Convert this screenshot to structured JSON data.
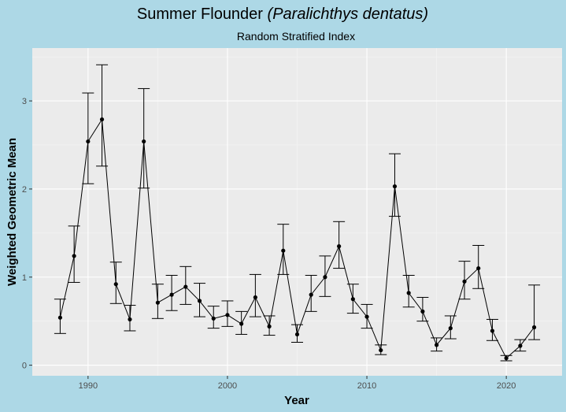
{
  "chart_data": {
    "type": "line",
    "title_main": "Summer Flounder ",
    "title_italic": "(Paralichthys dentatus)",
    "subtitle": "Random Stratified Index",
    "xlabel": "Year",
    "ylabel": "Weighted Geometric Mean",
    "xlim": [
      1986,
      2024
    ],
    "ylim": [
      -0.12,
      3.6
    ],
    "x_ticks": [
      1990,
      2000,
      2010,
      2020
    ],
    "y_ticks": [
      0,
      1,
      2,
      3
    ],
    "x": [
      1988,
      1989,
      1990,
      1991,
      1992,
      1993,
      1994,
      1995,
      1996,
      1997,
      1998,
      1999,
      2000,
      2001,
      2002,
      2003,
      2004,
      2005,
      2006,
      2007,
      2008,
      2009,
      2010,
      2011,
      2012,
      2013,
      2014,
      2015,
      2016,
      2017,
      2018,
      2019,
      2020,
      2021,
      2022
    ],
    "y": [
      0.54,
      1.24,
      2.54,
      2.79,
      0.92,
      0.52,
      2.54,
      0.71,
      0.8,
      0.89,
      0.73,
      0.53,
      0.57,
      0.47,
      0.77,
      0.44,
      1.3,
      0.35,
      0.8,
      1.0,
      1.35,
      0.75,
      0.55,
      0.17,
      2.03,
      0.82,
      0.61,
      0.23,
      0.42,
      0.95,
      1.1,
      0.39,
      0.08,
      0.22,
      0.43
    ],
    "lower": [
      0.36,
      0.94,
      2.06,
      2.26,
      0.7,
      0.39,
      2.01,
      0.53,
      0.62,
      0.69,
      0.55,
      0.42,
      0.44,
      0.35,
      0.55,
      0.34,
      1.03,
      0.26,
      0.61,
      0.78,
      1.1,
      0.59,
      0.42,
      0.12,
      1.69,
      0.66,
      0.5,
      0.16,
      0.3,
      0.75,
      0.87,
      0.28,
      0.05,
      0.16,
      0.29
    ],
    "upper": [
      0.75,
      1.58,
      3.09,
      3.41,
      1.17,
      0.68,
      3.14,
      0.92,
      1.02,
      1.12,
      0.93,
      0.67,
      0.73,
      0.61,
      1.03,
      0.56,
      1.6,
      0.46,
      1.02,
      1.24,
      1.63,
      0.92,
      0.69,
      0.23,
      2.4,
      1.02,
      0.77,
      0.31,
      0.56,
      1.18,
      1.36,
      0.52,
      0.11,
      0.29,
      0.91
    ],
    "colors": {
      "background": "#ADD8E6",
      "panel": "#EBEBEB",
      "grid_major": "#FFFFFF",
      "grid_minor": "#F5F5F5",
      "line": "#000000",
      "tick_text": "#4d4d4d",
      "tick_mark": "#333333"
    }
  }
}
